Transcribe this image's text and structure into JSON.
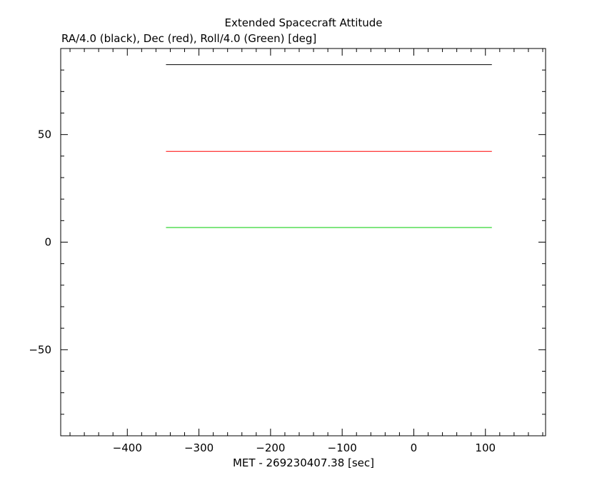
{
  "chart_data": {
    "type": "line",
    "title": "Extended Spacecraft Attitude",
    "subtitle": "RA/4.0 (black), Dec (red), Roll/4.0 (Green) [deg]",
    "xlabel": "MET - 269230407.38 [sec]",
    "ylabel": "",
    "xlim": [
      -493,
      184
    ],
    "ylim": [
      -90,
      90
    ],
    "xticks": [
      -400,
      -300,
      -200,
      -100,
      0,
      100
    ],
    "xtick_labels": [
      "−400",
      "−300",
      "−200",
      "−100",
      "0",
      "100"
    ],
    "yticks": [
      -50,
      0,
      50
    ],
    "ytick_labels": [
      "−50",
      "0",
      "50"
    ],
    "grid": false,
    "series": [
      {
        "color": "#000000",
        "x": [
          -346,
          109
        ],
        "values": [
          82.5,
          82.5
        ]
      },
      {
        "color": "#ff0000",
        "x": [
          -346,
          109
        ],
        "values": [
          42.2,
          42.2
        ]
      },
      {
        "color": "#00cc00",
        "x": [
          -346,
          109
        ],
        "values": [
          6.8,
          6.8
        ]
      }
    ]
  }
}
